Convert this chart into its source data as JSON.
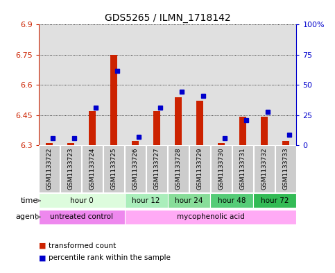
{
  "title": "GDS5265 / ILMN_1718142",
  "samples": [
    "GSM1133722",
    "GSM1133723",
    "GSM1133724",
    "GSM1133725",
    "GSM1133726",
    "GSM1133727",
    "GSM1133728",
    "GSM1133729",
    "GSM1133730",
    "GSM1133731",
    "GSM1133732",
    "GSM1133733"
  ],
  "red_values": [
    6.31,
    6.31,
    6.47,
    6.75,
    6.32,
    6.47,
    6.54,
    6.52,
    6.31,
    6.44,
    6.44,
    6.32
  ],
  "blue_values": [
    6.335,
    6.335,
    6.485,
    6.67,
    6.34,
    6.485,
    6.565,
    6.545,
    6.335,
    6.425,
    6.465,
    6.35
  ],
  "ylim": [
    6.3,
    6.9
  ],
  "yticks": [
    6.3,
    6.45,
    6.6,
    6.75,
    6.9
  ],
  "y2ticks": [
    0,
    25,
    50,
    75,
    100
  ],
  "y2labels": [
    "0",
    "25",
    "50",
    "75",
    "100%"
  ],
  "time_groups": [
    {
      "label": "hour 0",
      "start": 0,
      "end": 4,
      "color": "#ddfcdd"
    },
    {
      "label": "hour 12",
      "start": 4,
      "end": 6,
      "color": "#aaeebb"
    },
    {
      "label": "hour 24",
      "start": 6,
      "end": 8,
      "color": "#88dd99"
    },
    {
      "label": "hour 48",
      "start": 8,
      "end": 10,
      "color": "#55cc77"
    },
    {
      "label": "hour 72",
      "start": 10,
      "end": 12,
      "color": "#33bb55"
    }
  ],
  "agent_groups": [
    {
      "label": "untreated control",
      "start": 0,
      "end": 4,
      "color": "#ee88ee"
    },
    {
      "label": "mycophenolic acid",
      "start": 4,
      "end": 12,
      "color": "#ffaaf5"
    }
  ],
  "bar_color": "#cc2200",
  "dot_color": "#0000cc",
  "grid_color": "#000000",
  "bg_color": "#ffffff",
  "sample_bg": "#cccccc",
  "ylabel_color": "#cc2200",
  "y2label_color": "#0000cc",
  "legend_red": "transformed count",
  "legend_blue": "percentile rank within the sample",
  "bar_width": 0.35,
  "dot_size": 4
}
